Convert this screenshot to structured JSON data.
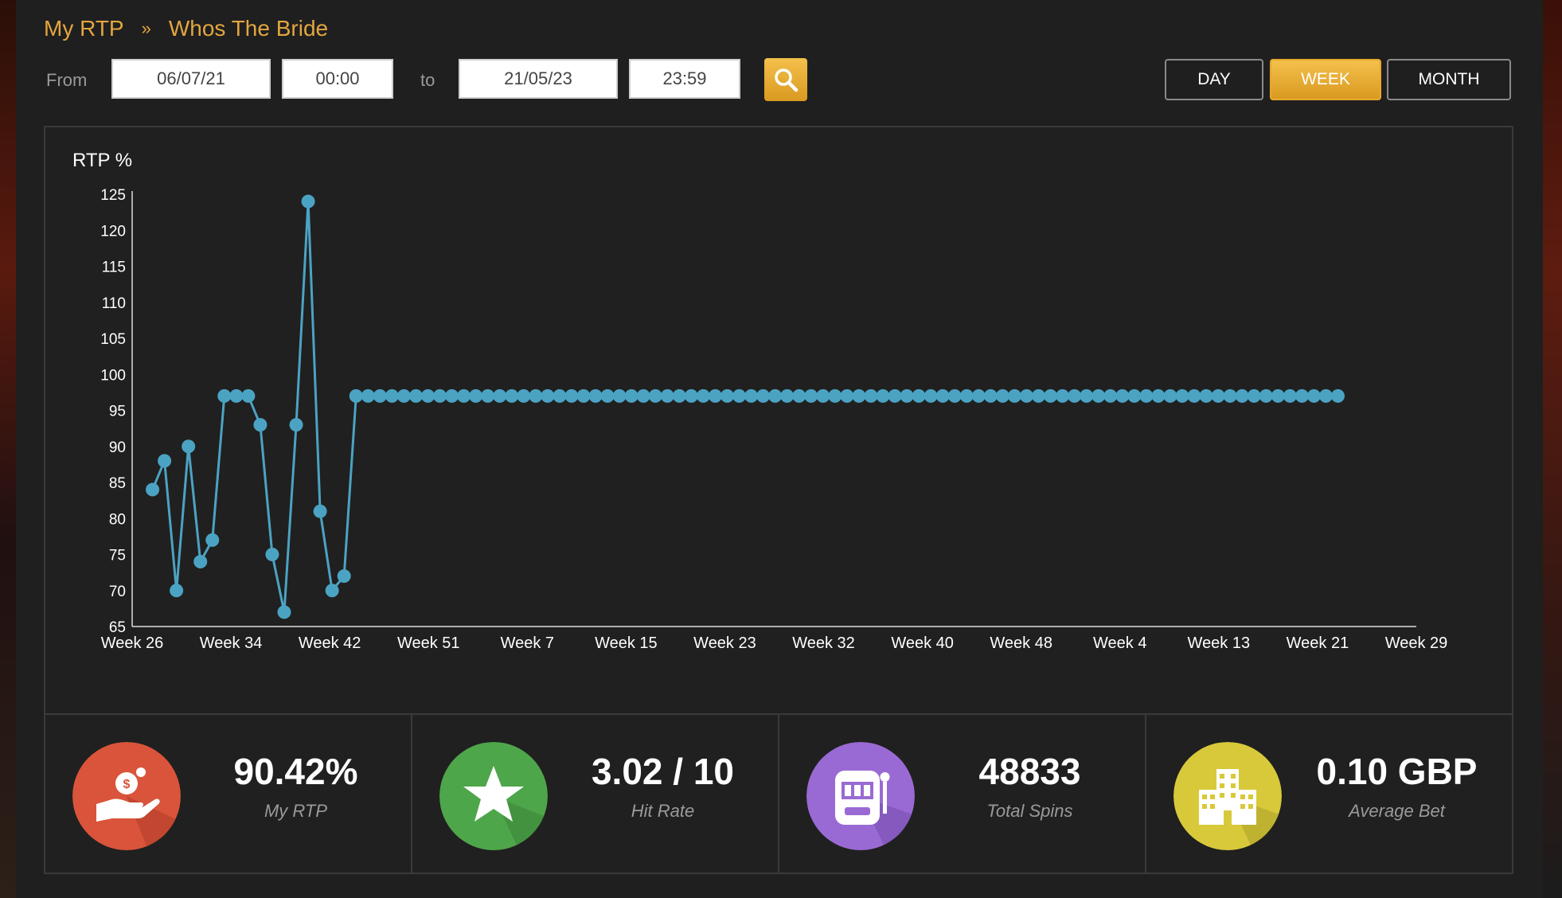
{
  "breadcrumb": {
    "root": "My RTP",
    "separator": "»",
    "current": "Whos The Bride"
  },
  "filter": {
    "from_label": "From",
    "from_date": "06/07/21",
    "from_time": "00:00",
    "to_label": "to",
    "to_date": "21/05/23",
    "to_time": "23:59",
    "search_icon": "search-icon"
  },
  "periods": [
    {
      "label": "DAY",
      "active": false
    },
    {
      "label": "WEEK",
      "active": true
    },
    {
      "label": "MONTH",
      "active": false
    }
  ],
  "colors": {
    "accent": "#e3a640",
    "series": "#4ba3c3"
  },
  "chart_data": {
    "type": "line",
    "ylabel": "RTP %",
    "xlabel": "",
    "ylim": [
      65,
      125
    ],
    "yticks": [
      65,
      70,
      75,
      80,
      85,
      90,
      95,
      100,
      105,
      110,
      115,
      120,
      125
    ],
    "xtick_labels": [
      "Week 26",
      "Week 34",
      "Week 42",
      "Week 51",
      "Week 7",
      "Week 15",
      "Week 23",
      "Week 32",
      "Week 40",
      "Week 48",
      "Week 4",
      "Week 13",
      "Week 21",
      "Week 29"
    ],
    "x_points_per_tick": 8.25,
    "grid": false,
    "series": [
      {
        "values": [
          84,
          88,
          70,
          90,
          74,
          77,
          97,
          97,
          97,
          93,
          75,
          67,
          93,
          124,
          81,
          70,
          72,
          97,
          97,
          97,
          97,
          97,
          97,
          97,
          97,
          97,
          97,
          97,
          97,
          97,
          97,
          97,
          97,
          97,
          97,
          97,
          97,
          97,
          97,
          97,
          97,
          97,
          97,
          97,
          97,
          97,
          97,
          97,
          97,
          97,
          97,
          97,
          97,
          97,
          97,
          97,
          97,
          97,
          97,
          97,
          97,
          97,
          97,
          97,
          97,
          97,
          97,
          97,
          97,
          97,
          97,
          97,
          97,
          97,
          97,
          97,
          97,
          97,
          97,
          97,
          97,
          97,
          97,
          97,
          97,
          97,
          97,
          97,
          97,
          97,
          97,
          97,
          97,
          97,
          97,
          97,
          97,
          97,
          97,
          97
        ]
      }
    ]
  },
  "stats": [
    {
      "value": "90.42%",
      "label": "My RTP",
      "icon": "hand-coin-icon",
      "color": "#d9543b"
    },
    {
      "value": "3.02 / 10",
      "label": "Hit Rate",
      "icon": "star-icon",
      "color": "#4ea64a"
    },
    {
      "value": "48833",
      "label": "Total Spins",
      "icon": "slot-machine-icon",
      "color": "#9a6ad4"
    },
    {
      "value": "0.10 GBP",
      "label": "Average Bet",
      "icon": "building-icon",
      "color": "#d8c93a"
    }
  ]
}
